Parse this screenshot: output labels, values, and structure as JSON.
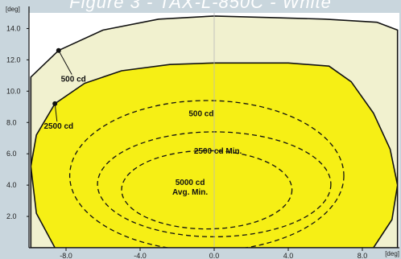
{
  "figure": {
    "title": "Figure 3 - TAX-L-850C - White"
  },
  "chart_data": {
    "type": "isocandela-contour",
    "xlabel": "[deg]",
    "ylabel": "[deg]",
    "xlim": [
      -10,
      10
    ],
    "ylim": [
      0,
      15
    ],
    "x_ticks": [
      "-8.0",
      "-4.0",
      "0.0",
      "4.0",
      "8.0"
    ],
    "x_tick_values": [
      -8,
      -4,
      0,
      4,
      8
    ],
    "y_ticks": [
      "2.0",
      "4.0",
      "6.0",
      "8.0",
      "10.0",
      "12.0",
      "14.0"
    ],
    "y_tick_values": [
      2,
      4,
      6,
      8,
      10,
      12,
      14
    ],
    "contours": [
      {
        "name": "500 cd",
        "style": "solid",
        "fill": "#f1f1cf",
        "points": [
          [
            -9.9,
            10.9
          ],
          [
            -8.4,
            12.6
          ],
          [
            -6,
            13.9
          ],
          [
            -3,
            14.6
          ],
          [
            0,
            14.8
          ],
          [
            3,
            14.7
          ],
          [
            6,
            14.6
          ],
          [
            8.8,
            14.4
          ],
          [
            9.9,
            13.9
          ],
          [
            9.9,
            0
          ],
          [
            -9.9,
            0
          ]
        ]
      },
      {
        "name": "2500 cd",
        "style": "solid",
        "fill": "#f6ef15",
        "points": [
          [
            -9.9,
            5.2
          ],
          [
            -9.6,
            7.2
          ],
          [
            -8.6,
            9.2
          ],
          [
            -7,
            10.5
          ],
          [
            -5,
            11.3
          ],
          [
            -2.4,
            11.7
          ],
          [
            0,
            11.8
          ],
          [
            4,
            11.8
          ],
          [
            6.2,
            11.6
          ],
          [
            7.4,
            10.6
          ],
          [
            8.6,
            8.6
          ],
          [
            9.5,
            6.3
          ],
          [
            9.9,
            4
          ],
          [
            9.6,
            1.8
          ],
          [
            8.6,
            0
          ],
          [
            -8.6,
            0
          ],
          [
            -9.6,
            2.2
          ]
        ]
      },
      {
        "name": "500 cd",
        "style": "dashed",
        "ellipse": {
          "cx": -0.4,
          "cy": 4.6,
          "rx": 7.4,
          "ry": 4.8
        }
      },
      {
        "name": "2500 cd Min.",
        "style": "dashed",
        "ellipse": {
          "cx": 0,
          "cy": 4.05,
          "rx": 6.3,
          "ry": 3.35
        }
      },
      {
        "name": "5000 cd Avg. Min.",
        "style": "dashed",
        "ellipse": {
          "cx": -0.4,
          "cy": 3.7,
          "rx": 4.6,
          "ry": 2.5
        }
      }
    ],
    "annotations": [
      {
        "line1": "500 cd",
        "line2": "",
        "x": -0.7,
        "y": 8.4
      },
      {
        "line1": "2500 cd Min.",
        "line2": "",
        "x": 0.2,
        "y": 6.0
      },
      {
        "line1": "5000 cd",
        "line2": "Avg. Min.",
        "x": -1.3,
        "y": 4.0
      }
    ],
    "callouts": [
      {
        "text": "500 cd",
        "point": [
          -8.4,
          12.6
        ],
        "label_at": [
          -7.6,
          10.6
        ]
      },
      {
        "text": "2500 cd",
        "point": [
          -8.6,
          9.2
        ],
        "label_at": [
          -8.4,
          7.6
        ]
      }
    ],
    "grid": {
      "x": [
        0
      ],
      "y": []
    }
  }
}
